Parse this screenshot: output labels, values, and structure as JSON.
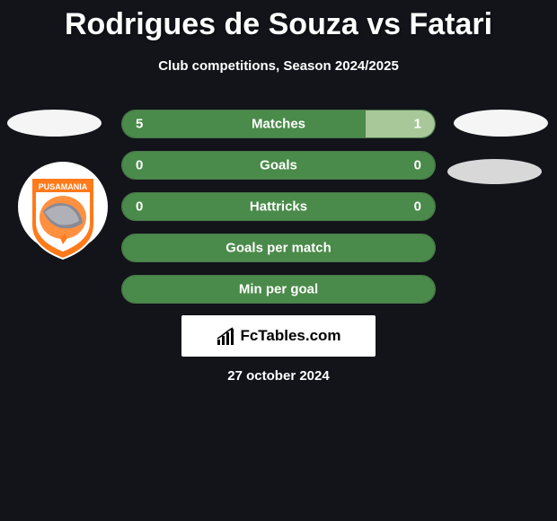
{
  "header": {
    "title": "Rodrigues de Souza vs Fatari",
    "subtitle": "Club competitions, Season 2024/2025"
  },
  "stats": [
    {
      "label": "Matches",
      "left_value": "5",
      "right_value": "1",
      "left_fill_pct": 78,
      "right_fill_pct": 22,
      "left_color": "#4a8a4a",
      "right_color": "#a8c89a"
    },
    {
      "label": "Goals",
      "left_value": "0",
      "right_value": "0",
      "left_fill_pct": 100,
      "right_fill_pct": 0,
      "left_color": "#4a8a4a",
      "right_color": "#a8c89a"
    },
    {
      "label": "Hattricks",
      "left_value": "0",
      "right_value": "0",
      "left_fill_pct": 100,
      "right_fill_pct": 0,
      "left_color": "#4a8a4a",
      "right_color": "#a8c89a"
    },
    {
      "label": "Goals per match",
      "left_value": "",
      "right_value": "",
      "left_fill_pct": 100,
      "right_fill_pct": 0,
      "left_color": "#4a8a4a",
      "right_color": "#a8c89a"
    },
    {
      "label": "Min per goal",
      "left_value": "",
      "right_value": "",
      "left_fill_pct": 100,
      "right_fill_pct": 0,
      "left_color": "#4a8a4a",
      "right_color": "#a8c89a"
    }
  ],
  "brand": {
    "text": "FcTables.com"
  },
  "footer": {
    "date": "27 october 2024"
  },
  "badge": {
    "main_color": "#ff7a1a",
    "accent_color": "#ffffff",
    "inner_color": "#ff9040",
    "text_top": "PUSAMANIA"
  },
  "colors": {
    "background": "#12141a",
    "text": "#ffffff",
    "row_bg": "#2a4a2a",
    "row_border": "#4a7a4a"
  }
}
